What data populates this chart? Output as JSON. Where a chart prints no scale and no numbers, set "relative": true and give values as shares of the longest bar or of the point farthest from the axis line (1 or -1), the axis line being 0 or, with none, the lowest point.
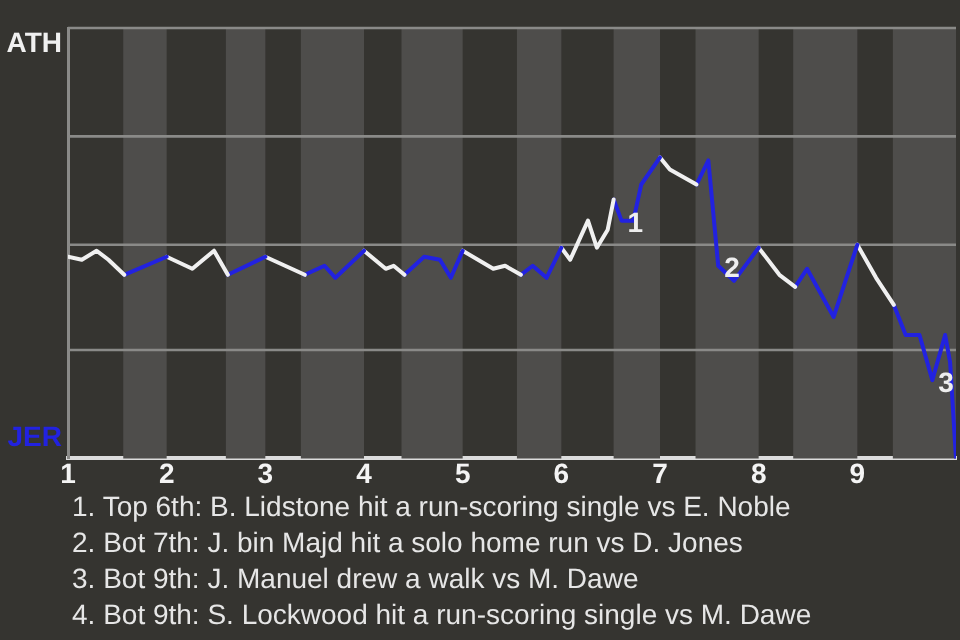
{
  "chart_data": {
    "type": "line",
    "relative": true,
    "xlim": [
      1,
      10
    ],
    "xticks": [
      1,
      2,
      3,
      4,
      5,
      6,
      7,
      8,
      9
    ],
    "series": [
      {
        "color": "#f0f0f0",
        "x": [
          1,
          1.14,
          1.29,
          1.41,
          1.57
        ],
        "values": [
          0.67,
          0.66,
          0.69,
          0.66,
          0.61
        ]
      },
      {
        "color": "#2222e0",
        "x": [
          1.57,
          2
        ],
        "values": [
          0.61,
          0.67
        ]
      },
      {
        "color": "#f0f0f0",
        "x": [
          2,
          2.26,
          2.48,
          2.62
        ],
        "values": [
          0.67,
          0.63,
          0.69,
          0.61
        ]
      },
      {
        "color": "#2222e0",
        "x": [
          2.62,
          3
        ],
        "values": [
          0.61,
          0.67
        ]
      },
      {
        "color": "#f0f0f0",
        "x": [
          3,
          3.4
        ],
        "values": [
          0.67,
          0.61
        ]
      },
      {
        "color": "#2222e0",
        "x": [
          3.4,
          3.6,
          3.71,
          4
        ],
        "values": [
          0.61,
          0.64,
          0.6,
          0.69
        ]
      },
      {
        "color": "#f0f0f0",
        "x": [
          4,
          4.22,
          4.3,
          4.41
        ],
        "values": [
          0.69,
          0.63,
          0.64,
          0.61
        ]
      },
      {
        "color": "#2222e0",
        "x": [
          4.41,
          4.61,
          4.77,
          4.88,
          5
        ],
        "values": [
          0.61,
          0.67,
          0.66,
          0.6,
          0.69
        ]
      },
      {
        "color": "#f0f0f0",
        "x": [
          5,
          5.31,
          5.43,
          5.59
        ],
        "values": [
          0.69,
          0.63,
          0.64,
          0.61
        ]
      },
      {
        "color": "#2222e0",
        "x": [
          5.59,
          5.71,
          5.85,
          6
        ],
        "values": [
          0.61,
          0.64,
          0.6,
          0.7
        ]
      },
      {
        "color": "#f0f0f0",
        "x": [
          6,
          6.09,
          6.27,
          6.36,
          6.47,
          6.53
        ],
        "values": [
          0.7,
          0.66,
          0.79,
          0.7,
          0.76,
          0.86
        ]
      },
      {
        "color": "#2222e0",
        "x": [
          6.53,
          6.61,
          6.73,
          6.81,
          7
        ],
        "values": [
          0.86,
          0.79,
          0.79,
          0.91,
          1
        ]
      },
      {
        "color": "#f0f0f0",
        "x": [
          7,
          7.1,
          7.37
        ],
        "values": [
          1,
          0.96,
          0.91
        ]
      },
      {
        "color": "#2222e0",
        "x": [
          7.37,
          7.49,
          7.59,
          7.75,
          8
        ],
        "values": [
          0.91,
          0.99,
          0.64,
          0.59,
          0.7
        ]
      },
      {
        "color": "#f0f0f0",
        "x": [
          8,
          8.21,
          8.37
        ],
        "values": [
          0.7,
          0.61,
          0.57
        ]
      },
      {
        "color": "#2222e0",
        "x": [
          8.37,
          8.49,
          8.76,
          9
        ],
        "values": [
          0.57,
          0.63,
          0.47,
          0.71
        ]
      },
      {
        "color": "#f0f0f0",
        "x": [
          9,
          9.19,
          9.37
        ],
        "values": [
          0.71,
          0.6,
          0.51
        ]
      },
      {
        "color": "#2222e0",
        "x": [
          9.37,
          9.49,
          9.63,
          9.76,
          9.89,
          9.94,
          10
        ],
        "values": [
          0.51,
          0.41,
          0.41,
          0.26,
          0.41,
          0.32,
          0
        ]
      }
    ],
    "legend": false,
    "marker": "none",
    "line_style": "solid",
    "ref_lines": [
      {
        "axis": "y",
        "value": 0.36,
        "color": "#8a8a88"
      },
      {
        "axis": "y",
        "value": 0.71,
        "color": "#8a8a88"
      },
      {
        "axis": "y",
        "value": 1.07,
        "color": "#8a8a88"
      },
      {
        "axis": "y",
        "value": 1.43,
        "color": "#8a8a88"
      }
    ],
    "bands": [
      {
        "axis": "x",
        "from": 1.56,
        "to": 2,
        "color": "#4e4d4b"
      },
      {
        "axis": "x",
        "from": 2.6,
        "to": 3,
        "color": "#4e4d4b"
      },
      {
        "axis": "x",
        "from": 3.36,
        "to": 4,
        "color": "#4e4d4b"
      },
      {
        "axis": "x",
        "from": 4.38,
        "to": 5,
        "color": "#4e4d4b"
      },
      {
        "axis": "x",
        "from": 5.55,
        "to": 6,
        "color": "#4e4d4b"
      },
      {
        "axis": "x",
        "from": 6.53,
        "to": 7,
        "color": "#4e4d4b"
      },
      {
        "axis": "x",
        "from": 7.36,
        "to": 8,
        "color": "#4e4d4b"
      },
      {
        "axis": "x",
        "from": 8.35,
        "to": 9,
        "color": "#4e4d4b"
      },
      {
        "axis": "x",
        "from": 9.36,
        "to": 10,
        "color": "#4e4d4b"
      }
    ],
    "annotations": [
      "ATH",
      "JER",
      {
        "text": "1",
        "x": 6.61,
        "y": 0.79
      },
      {
        "text": "2",
        "x": 7.59,
        "y": 0.64
      },
      {
        "text": "3",
        "x": 9.76,
        "y": 0.26
      },
      "1. Top 6th: B. Lidstone hit a run-scoring single vs E. Noble",
      "2. Bot 7th: J. bin Majd hit a solo home run vs D. Jones",
      "3. Bot 9th: J. Manuel drew a walk vs M. Dawe",
      "4. Bot 9th: S. Lockwood hit a run-scoring single vs M. Dawe"
    ]
  }
}
